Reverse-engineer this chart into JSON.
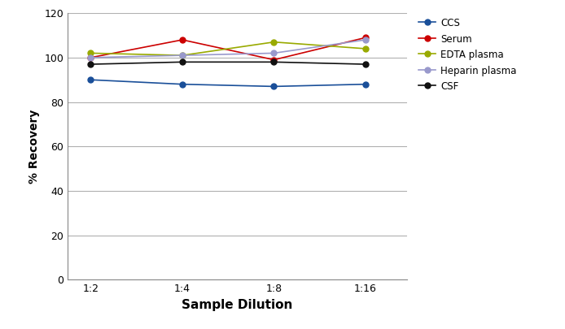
{
  "x_labels": [
    "1:2",
    "1:4",
    "1:8",
    "1:16"
  ],
  "x_values": [
    0,
    1,
    2,
    3
  ],
  "series": [
    {
      "name": "CCS",
      "color": "#1a4f99",
      "values": [
        90,
        88,
        87,
        88
      ],
      "marker": "o",
      "linewidth": 1.2,
      "markersize": 5
    },
    {
      "name": "Serum",
      "color": "#cc0000",
      "values": [
        100,
        108,
        99,
        109
      ],
      "marker": "o",
      "linewidth": 1.2,
      "markersize": 5
    },
    {
      "name": "EDTA plasma",
      "color": "#99aa00",
      "values": [
        102,
        101,
        107,
        104
      ],
      "marker": "o",
      "linewidth": 1.2,
      "markersize": 5
    },
    {
      "name": "Heparin plasma",
      "color": "#9999cc",
      "values": [
        100,
        101,
        102,
        108
      ],
      "marker": "o",
      "linewidth": 1.2,
      "markersize": 5
    },
    {
      "name": "CSF",
      "color": "#111111",
      "values": [
        97,
        98,
        98,
        97
      ],
      "marker": "o",
      "linewidth": 1.2,
      "markersize": 5
    }
  ],
  "ylabel": "% Recovery",
  "xlabel": "Sample Dilution",
  "ylim": [
    0,
    120
  ],
  "yticks": [
    0,
    20,
    40,
    60,
    80,
    100,
    120
  ],
  "background_color": "#ffffff",
  "grid_color": "#b0b0b0",
  "legend_fontsize": 8.5,
  "ylabel_fontsize": 10,
  "xlabel_fontsize": 11,
  "tick_fontsize": 9
}
